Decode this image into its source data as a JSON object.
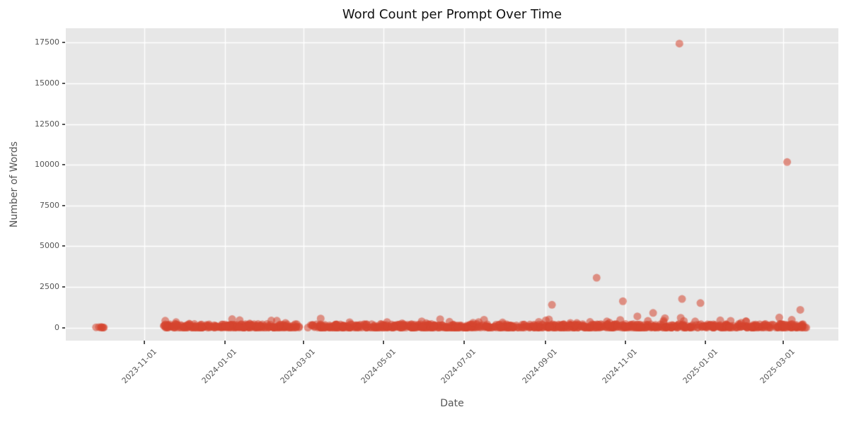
{
  "colors": {
    "figure_bg": "#ffffff",
    "axes_bg": "#e7e7e7",
    "grid": "#ffffff",
    "tick_label": "#555555",
    "axis_label": "#555555",
    "title": "#111111",
    "marker": "#d6452f"
  },
  "chart_data": {
    "type": "scatter",
    "title": "Word Count per Prompt Over Time",
    "xlabel": "Date",
    "ylabel": "Number of Words",
    "x_tick_labels": [
      "2023-11-01",
      "2024-01-01",
      "2024-03-01",
      "2024-05-01",
      "2024-07-01",
      "2024-09-01",
      "2024-11-01",
      "2025-01-01",
      "2025-03-01"
    ],
    "y_tick_values": [
      0,
      2500,
      5000,
      7500,
      10000,
      12500,
      15000,
      17500
    ],
    "xlim": [
      "2023-09-02",
      "2025-04-12"
    ],
    "ylim": [
      -800,
      18390
    ],
    "grid": true,
    "legend": "none",
    "marker": {
      "color": "#d6452f",
      "alpha": 0.55,
      "radius": 5.5
    },
    "outliers": [
      {
        "date": "2024-12-12",
        "words": 17450
      },
      {
        "date": "2025-03-04",
        "words": 10170
      },
      {
        "date": "2024-10-10",
        "words": 3060
      },
      {
        "date": "2024-12-14",
        "words": 1760
      },
      {
        "date": "2024-10-30",
        "words": 1620
      },
      {
        "date": "2024-12-28",
        "words": 1510
      },
      {
        "date": "2024-09-06",
        "words": 1400
      },
      {
        "date": "2025-03-14",
        "words": 1090
      },
      {
        "date": "2024-11-22",
        "words": 900
      },
      {
        "date": "2024-11-10",
        "words": 690
      },
      {
        "date": "2025-02-26",
        "words": 620
      },
      {
        "date": "2024-12-13",
        "words": 600
      },
      {
        "date": "2024-12-01",
        "words": 580
      },
      {
        "date": "2024-03-14",
        "words": 560
      },
      {
        "date": "2024-10-28",
        "words": 470
      },
      {
        "date": "2024-11-30",
        "words": 430
      },
      {
        "date": "2025-01-20",
        "words": 420
      },
      {
        "date": "2024-12-24",
        "words": 380
      },
      {
        "date": "2024-06-20",
        "words": 360
      },
      {
        "date": "2024-08-27",
        "words": 350
      },
      {
        "date": "2024-04-05",
        "words": 330
      },
      {
        "date": "2024-07-08",
        "words": 300
      },
      {
        "date": "2025-01-28",
        "words": 300
      },
      {
        "date": "2024-09-20",
        "words": 290
      },
      {
        "date": "2024-05-15",
        "words": 260
      },
      {
        "date": "2024-01-20",
        "words": 250
      },
      {
        "date": "2023-12-05",
        "words": 240
      }
    ],
    "band_segments": [
      {
        "start": "2023-09-25",
        "end": "2023-10-03",
        "n": 7,
        "v_max": 80
      },
      {
        "start": "2023-11-15",
        "end": "2024-02-27",
        "n": 280,
        "v_max": 220
      },
      {
        "start": "2024-03-04",
        "end": "2025-03-20",
        "n": 950,
        "v_max": 220
      }
    ],
    "band_bump_chance": 0.025,
    "seed": 42
  }
}
